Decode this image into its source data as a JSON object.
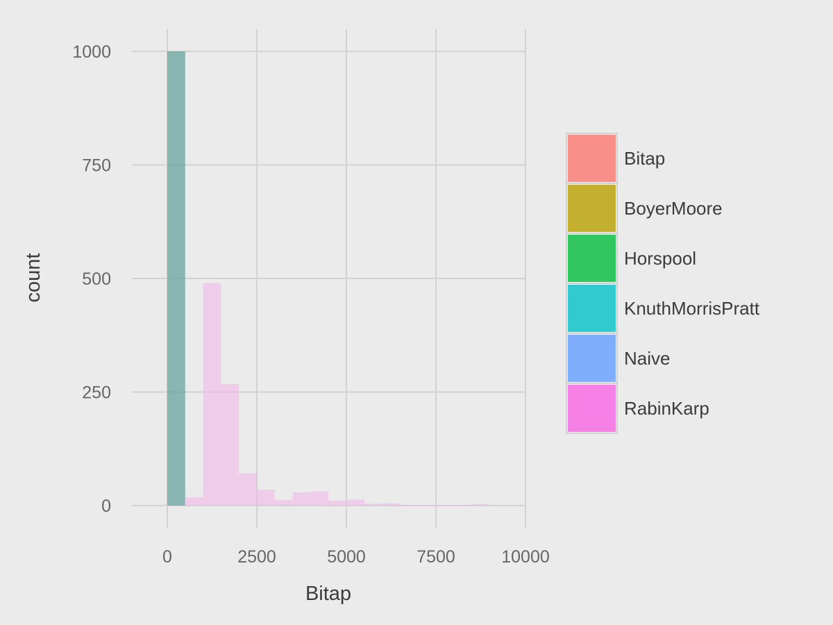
{
  "chart_data": {
    "type": "bar",
    "subtype": "histogram",
    "title": "",
    "xlabel": "Bitap",
    "ylabel": "count",
    "xlim": [
      -1000,
      10000
    ],
    "ylim": [
      -45,
      1045
    ],
    "grid": true,
    "x_ticks": [
      0,
      2500,
      5000,
      7500,
      10000
    ],
    "x_tick_labels": [
      "0",
      "2500",
      "5000",
      "7500",
      "10000"
    ],
    "y_ticks": [
      0,
      250,
      500,
      750,
      1000
    ],
    "y_tick_labels": [
      "0",
      "250",
      "500",
      "750",
      "1000"
    ],
    "legend": {
      "placement": "right",
      "entries": [
        {
          "label": "Bitap",
          "color": "#f8766d"
        },
        {
          "label": "BoyerMoore",
          "color": "#b79f00"
        },
        {
          "label": "Horspool",
          "color": "#00ba38"
        },
        {
          "label": "KnuthMorrisPratt",
          "color": "#00bfc4"
        },
        {
          "label": "Naive",
          "color": "#619cff"
        },
        {
          "label": "RabinKarp",
          "color": "#f564e3"
        }
      ]
    },
    "series": [
      {
        "name": "KnuthMorrisPratt",
        "color": "#5f9f98",
        "opacity": 0.7,
        "bins": [
          {
            "x0": 0,
            "x1": 500,
            "count": 1000
          }
        ]
      },
      {
        "name": "RabinKarp",
        "color": "#f3b4e9",
        "opacity": 0.55,
        "bins": [
          {
            "x0": 500,
            "x1": 1000,
            "count": 18
          },
          {
            "x0": 1000,
            "x1": 1500,
            "count": 490
          },
          {
            "x0": 1500,
            "x1": 2000,
            "count": 268
          },
          {
            "x0": 2000,
            "x1": 2500,
            "count": 71
          },
          {
            "x0": 2500,
            "x1": 3000,
            "count": 35
          },
          {
            "x0": 3000,
            "x1": 3500,
            "count": 12
          },
          {
            "x0": 3500,
            "x1": 4000,
            "count": 29
          },
          {
            "x0": 4000,
            "x1": 4500,
            "count": 31
          },
          {
            "x0": 4500,
            "x1": 5000,
            "count": 11
          },
          {
            "x0": 5000,
            "x1": 5500,
            "count": 13
          },
          {
            "x0": 5500,
            "x1": 6000,
            "count": 4
          },
          {
            "x0": 6000,
            "x1": 6500,
            "count": 5
          },
          {
            "x0": 6500,
            "x1": 7000,
            "count": 1
          },
          {
            "x0": 7000,
            "x1": 7500,
            "count": 1
          },
          {
            "x0": 7500,
            "x1": 8000,
            "count": 1
          },
          {
            "x0": 8000,
            "x1": 8500,
            "count": 1
          },
          {
            "x0": 8500,
            "x1": 9000,
            "count": 3
          }
        ]
      }
    ]
  }
}
